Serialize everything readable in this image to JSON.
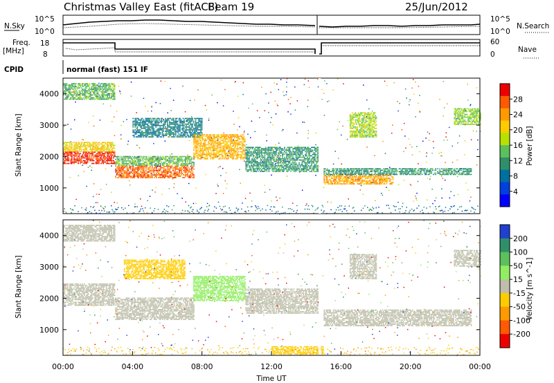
{
  "header": {
    "title": "Christmas Valley East (fitACF)",
    "beam": "Beam 19",
    "date": "25/Jun/2012"
  },
  "noise_panel": {
    "left_label": "N.Sky",
    "right_label": "N.Search",
    "left_ticks": [
      "10^5",
      "10^0"
    ],
    "right_ticks": [
      "10^5",
      "10^0"
    ]
  },
  "freq_panel": {
    "left_label_top": "Freq.",
    "left_label_bottom": "[MHz]",
    "left_ticks": [
      "18",
      "8"
    ],
    "right_label": "Nave",
    "right_ticks": [
      "60",
      "0"
    ]
  },
  "cpid": {
    "label": "CPID",
    "value": "normal (fast) 151 IF"
  },
  "power_colorbar": {
    "label": "Power [dB]",
    "ticks": [
      "28",
      "24",
      "20",
      "16",
      "12",
      "8",
      "4"
    ],
    "colors": [
      "#ee0000",
      "#ff5a00",
      "#ff9a00",
      "#ffcc00",
      "#b8e000",
      "#5cc05c",
      "#2f8f6a",
      "#0070a0",
      "#0040e0",
      "#0000ff"
    ]
  },
  "velocity_colorbar": {
    "label": "Velocity [m s^-1]",
    "ticks": [
      "200",
      "100",
      "50",
      "15",
      "-15",
      "-50",
      "-100",
      "-200"
    ],
    "colors": [
      "#2040d0",
      "#2f8f6a",
      "#5cc05c",
      "#90ee60",
      "#bebeaa",
      "#ffcc00",
      "#ff9a00",
      "#ff5a00",
      "#ee0000"
    ]
  },
  "chart_data": [
    {
      "type": "line",
      "panel": "noise",
      "series": [
        {
          "name": "N.Sky",
          "style": "solid"
        },
        {
          "name": "N.Search",
          "style": "dotted"
        }
      ],
      "x": [
        0,
        3,
        6,
        9,
        12,
        14.7,
        14.8,
        18,
        21,
        24
      ],
      "gap": [
        14.7,
        14.8
      ]
    },
    {
      "type": "line",
      "panel": "frequency",
      "series": [
        {
          "name": "Freq.",
          "style": "solid"
        },
        {
          "name": "Nave",
          "style": "dotted"
        }
      ],
      "x": [
        0,
        3,
        14.7,
        14.8,
        24
      ],
      "freq_mhz": [
        15.7,
        10.6,
        10.6,
        15.7,
        15.7
      ]
    },
    {
      "type": "heatmap",
      "panel": "power",
      "title": "",
      "xlabel": "",
      "ylabel": "Slant Range [km]",
      "xlim": [
        0,
        24
      ],
      "ylim": [
        180,
        4500
      ],
      "yticks": [
        1000,
        2000,
        3000,
        4000
      ],
      "colorbar_range": [
        0,
        30
      ],
      "colorbar_label": "Power [dB]",
      "bands": [
        {
          "t0": 0,
          "t1": 3,
          "r0": 1750,
          "r1": 2150,
          "value": 27
        },
        {
          "t0": 0,
          "t1": 3,
          "r0": 2150,
          "r1": 2450,
          "value": 19
        },
        {
          "t0": 0,
          "t1": 3,
          "r0": 3800,
          "r1": 4300,
          "value": 13
        },
        {
          "t0": 3,
          "t1": 7.5,
          "r0": 1300,
          "r1": 1700,
          "value": 25
        },
        {
          "t0": 3,
          "t1": 7.5,
          "r0": 1700,
          "r1": 2000,
          "value": 13
        },
        {
          "t0": 4,
          "t1": 8,
          "r0": 2600,
          "r1": 3200,
          "value": 9
        },
        {
          "t0": 7.5,
          "t1": 10.5,
          "r0": 1900,
          "r1": 2700,
          "value": 21
        },
        {
          "t0": 10.5,
          "t1": 14.7,
          "r0": 1500,
          "r1": 2300,
          "value": 11
        },
        {
          "t0": 15,
          "t1": 19,
          "r0": 1100,
          "r1": 1400,
          "value": 22
        },
        {
          "t0": 15,
          "t1": 23.5,
          "r0": 1400,
          "r1": 1600,
          "value": 11
        },
        {
          "t0": 16.5,
          "t1": 18,
          "r0": 2600,
          "r1": 3400,
          "value": 16
        },
        {
          "t0": 22.5,
          "t1": 24,
          "r0": 3000,
          "r1": 3500,
          "value": 15
        }
      ]
    },
    {
      "type": "heatmap",
      "panel": "velocity",
      "title": "",
      "xlabel": "Time UT",
      "ylabel": "Slant Range [km]",
      "xlim": [
        0,
        24
      ],
      "ylim": [
        180,
        4500
      ],
      "xticks": [
        "00:00",
        "04:00",
        "08:00",
        "12:00",
        "16:00",
        "20:00",
        "00:00"
      ],
      "yticks": [
        1000,
        2000,
        3000,
        4000
      ],
      "colorbar_range": [
        -250,
        250
      ],
      "colorbar_label": "Velocity [m s^-1]",
      "bands": [
        {
          "t0": 0,
          "t1": 3,
          "r0": 1750,
          "r1": 2450,
          "value": 0
        },
        {
          "t0": 0,
          "t1": 3,
          "r0": 3800,
          "r1": 4300,
          "value": 0
        },
        {
          "t0": 3,
          "t1": 7.5,
          "r0": 1300,
          "r1": 2000,
          "value": 0
        },
        {
          "t0": 3.5,
          "t1": 7,
          "r0": 2600,
          "r1": 3200,
          "value": -70
        },
        {
          "t0": 7.5,
          "t1": 10.5,
          "r0": 1900,
          "r1": 2700,
          "value": 40
        },
        {
          "t0": 10.5,
          "t1": 14.7,
          "r0": 1500,
          "r1": 2300,
          "value": 0
        },
        {
          "t0": 15,
          "t1": 23.5,
          "r0": 1100,
          "r1": 1600,
          "value": 0
        },
        {
          "t0": 16.5,
          "t1": 18,
          "r0": 2600,
          "r1": 3400,
          "value": 0
        },
        {
          "t0": 22.5,
          "t1": 24,
          "r0": 3000,
          "r1": 3500,
          "value": 0
        },
        {
          "t0": 12,
          "t1": 15,
          "r0": 200,
          "r1": 450,
          "value": -60
        }
      ]
    }
  ]
}
